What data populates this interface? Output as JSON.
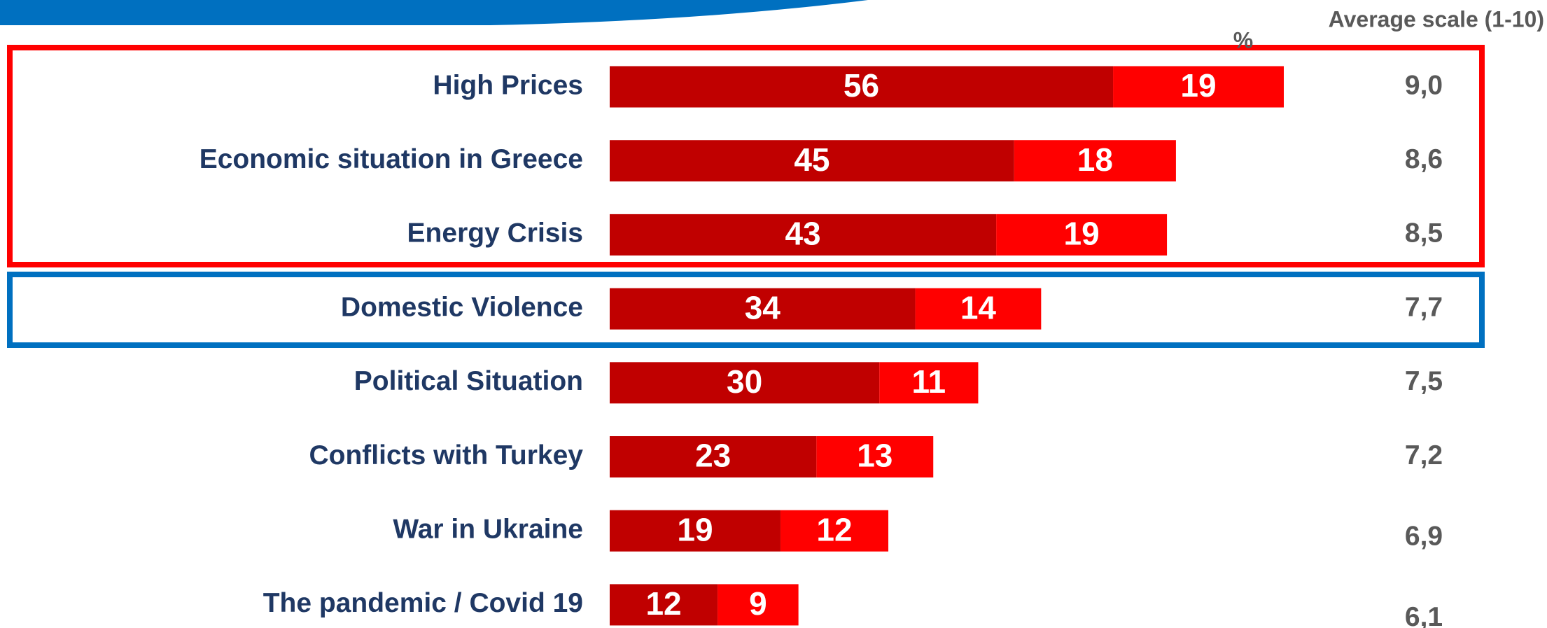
{
  "chart_data": {
    "type": "stacked-bar-horizontal",
    "unit_label": "%",
    "categories": [
      "High Prices",
      "Economic situation in Greece",
      "Energy Crisis",
      "Domestic Violence",
      "Political Situation",
      "Conflicts with Turkey",
      "War in Ukraine",
      "The pandemic / Covid 19"
    ],
    "series": [
      {
        "color": "#c00000",
        "values": [
          56,
          45,
          43,
          34,
          30,
          23,
          19,
          12
        ]
      },
      {
        "color": "#ff0000",
        "values": [
          19,
          18,
          19,
          14,
          11,
          13,
          12,
          9
        ]
      }
    ],
    "xlim": [
      0,
      100
    ],
    "average_scale": {
      "label": "Average scale (1-10)",
      "values": [
        9.0,
        8.6,
        8.5,
        7.7,
        7.5,
        7.2,
        6.9,
        6.1
      ],
      "value_labels": [
        "9,0",
        "8,6",
        "8,5",
        "7,7",
        "7,5",
        "7,2",
        "6,9",
        "6,1"
      ]
    }
  }
}
